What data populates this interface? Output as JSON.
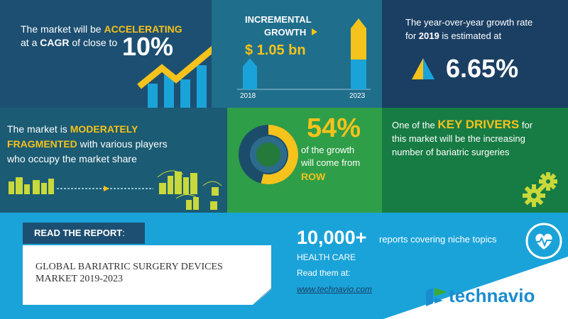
{
  "colors": {
    "dark_blue": "#1d4f72",
    "mid_blue": "#1f6e8c",
    "navy": "#1b3f63",
    "green": "#2f9e48",
    "teal_dark": "#1b5b73",
    "sky": "#1aa3d9",
    "yellow": "#f6c21c",
    "bar_blue": "#1aa3d9",
    "logo_blue": "#1a8ccf",
    "logo_green": "#3aaa35"
  },
  "cagr": {
    "line1_pre": "The market will be ",
    "line1_emph": "ACCELERATING",
    "line2_pre": "at a ",
    "line2_emph": "CAGR",
    "line2_post": " of close to",
    "value": "10%"
  },
  "incremental": {
    "label_line1": "INCREMENTAL",
    "label_line2": "GROWTH",
    "value": "$ 1.05 bn",
    "year_start": "2018",
    "year_end": "2023"
  },
  "yoy": {
    "line1": "The year-over-year growth rate",
    "line2_pre": "for ",
    "line2_year": "2019",
    "line2_post": " is estimated at",
    "value": "6.65%"
  },
  "fragmented": {
    "line1_pre": "The market is ",
    "line1_emph": "MODERATELY",
    "line2_emph": "FRAGMENTED",
    "line2_post": " with various players",
    "line3": "who occupy the market share"
  },
  "region": {
    "value": "54%",
    "line1": "of the growth",
    "line2": "will come from",
    "region": "ROW",
    "share": 0.54
  },
  "drivers": {
    "line1_pre": "One of the ",
    "line1_emph": "KEY DRIVERS",
    "line1_post": " for",
    "line2": "this market will be the increasing",
    "line3": "number of bariatric surgeries"
  },
  "report": {
    "read_label": "READ THE REPORT",
    "read_colon": ":",
    "title_line1": "GLOBAL BARIATRIC SURGERY DEVICES",
    "title_line2": "MARKET 2019-2023",
    "count": "10,000+",
    "count_desc": "reports covering niche topics",
    "category": "HEALTH CARE",
    "read_them": "Read them at:",
    "url": "www.technavio.com",
    "brand": "technavio"
  },
  "icons": {
    "growth_arrow": "rising-arrow-icon",
    "triangle": "growth-triangle-icon",
    "gears": "gears-icon",
    "heart": "heart-monitor-icon",
    "buildings": "buildings-icon",
    "logo": "technavio-logo-icon"
  }
}
